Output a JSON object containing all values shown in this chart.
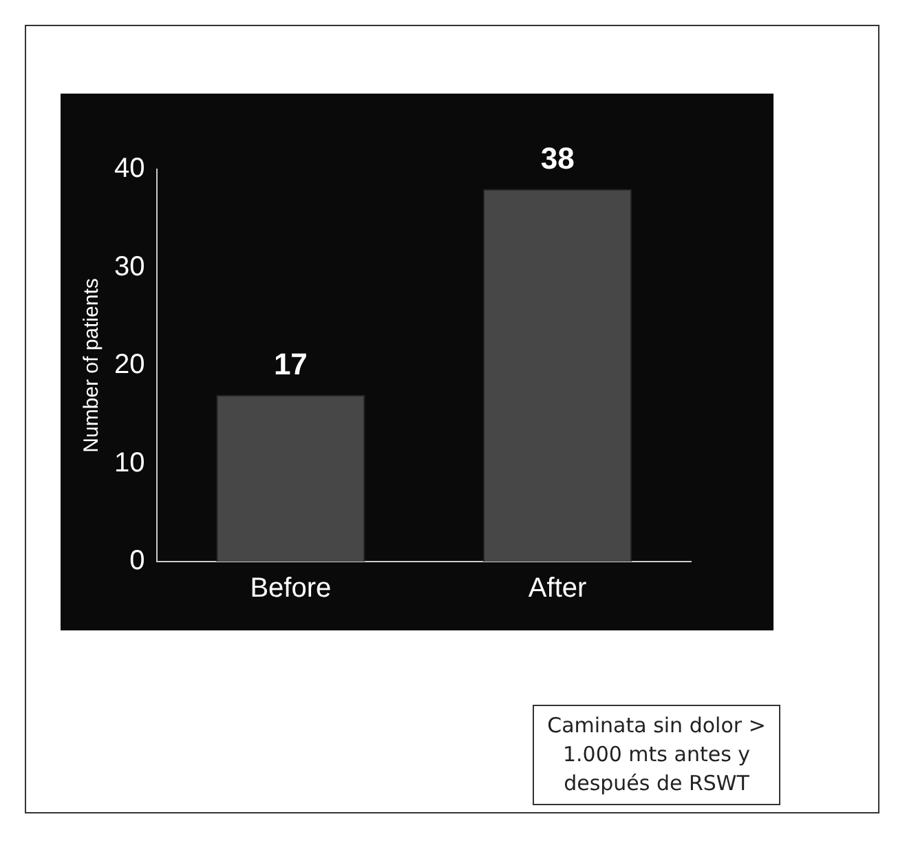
{
  "chart_data": {
    "type": "bar",
    "ylabel": "Number of patients",
    "categories": [
      "Before",
      "After"
    ],
    "values": [
      17,
      38
    ],
    "color": "#474747",
    "ylim": [
      0,
      40
    ],
    "yticks": [
      0,
      10,
      20,
      30,
      40
    ],
    "grid": false,
    "legend": false,
    "data_labels": true,
    "annotations": [
      "Caminata sin dolor > 1.000 mts antes y después de RSWT"
    ]
  }
}
